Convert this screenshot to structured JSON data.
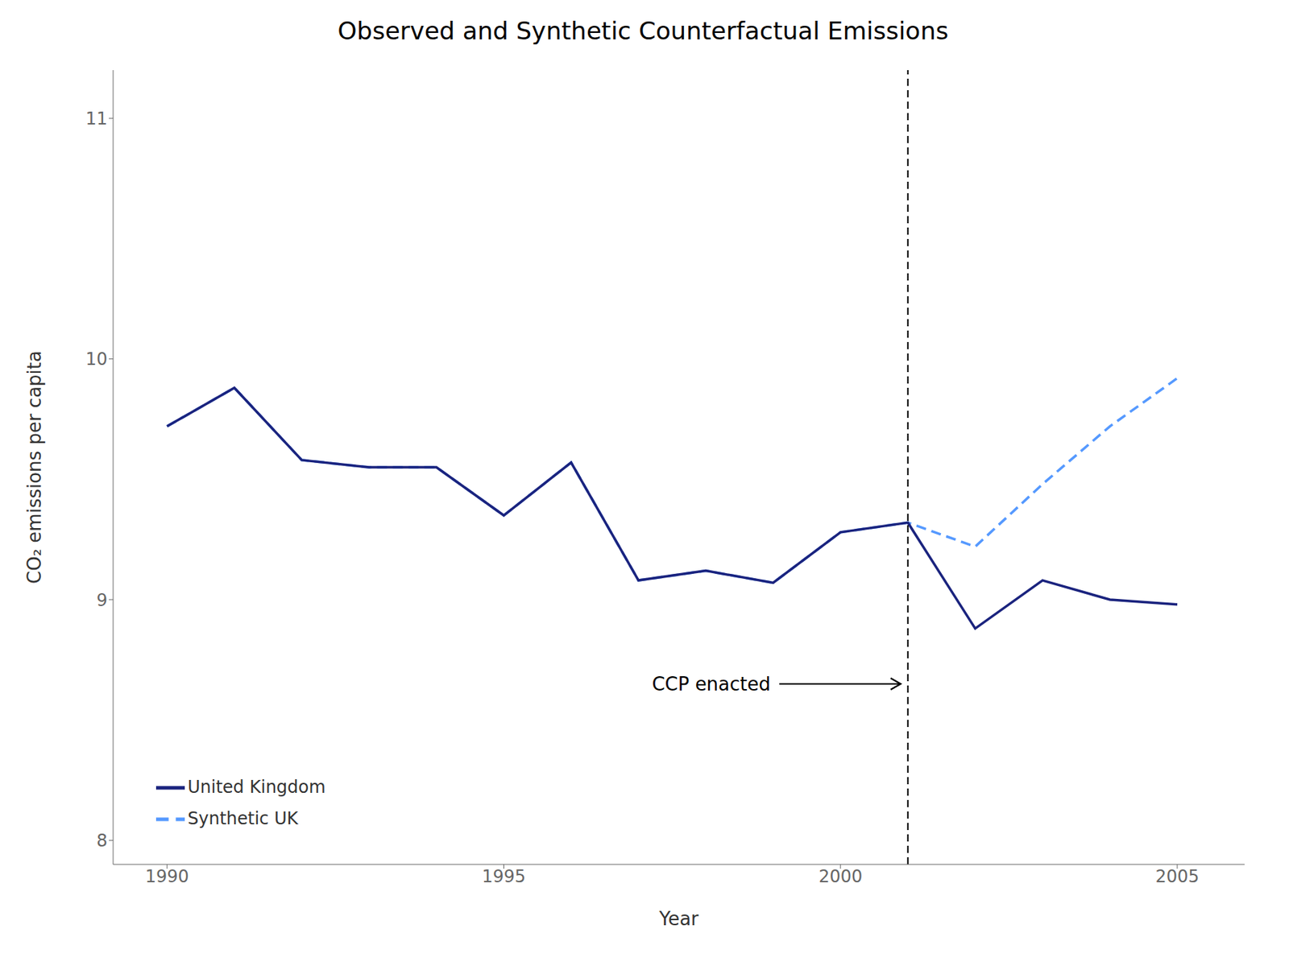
{
  "chart_data": {
    "type": "line",
    "title": "Observed and Synthetic Counterfactual Emissions",
    "x_label": "Year",
    "y_label": "CO₂ emissions per capita",
    "x": [
      1990,
      1991,
      1992,
      1993,
      1994,
      1995,
      1996,
      1997,
      1998,
      1999,
      2000,
      2001,
      2002,
      2003,
      2004,
      2005
    ],
    "series": [
      {
        "name": "United Kingdom",
        "color": "#1a237e",
        "line_style": "solid",
        "values": [
          9.72,
          9.88,
          9.58,
          9.55,
          9.55,
          9.35,
          9.57,
          9.08,
          9.12,
          9.07,
          9.28,
          9.32,
          8.88,
          9.08,
          9.0,
          8.98
        ]
      },
      {
        "name": "Synthetic UK",
        "color": "#5599ff",
        "line_style": "dashed",
        "values": [
          9.72,
          9.88,
          9.58,
          9.55,
          9.55,
          9.35,
          9.57,
          9.08,
          9.12,
          9.07,
          9.28,
          9.32,
          9.22,
          9.48,
          9.72,
          9.92
        ]
      }
    ],
    "reference_x": 2001,
    "annotations": [
      {
        "text": "CCP enacted",
        "x": 1997.2,
        "y": 8.65
      }
    ],
    "xlim": [
      1989.2,
      2006.0
    ],
    "ylim": [
      7.9,
      11.2
    ],
    "xticks": [
      1990,
      1995,
      2000,
      2005
    ],
    "yticks": [
      8,
      9,
      10,
      11
    ],
    "grid": false,
    "legend": "lower left"
  }
}
